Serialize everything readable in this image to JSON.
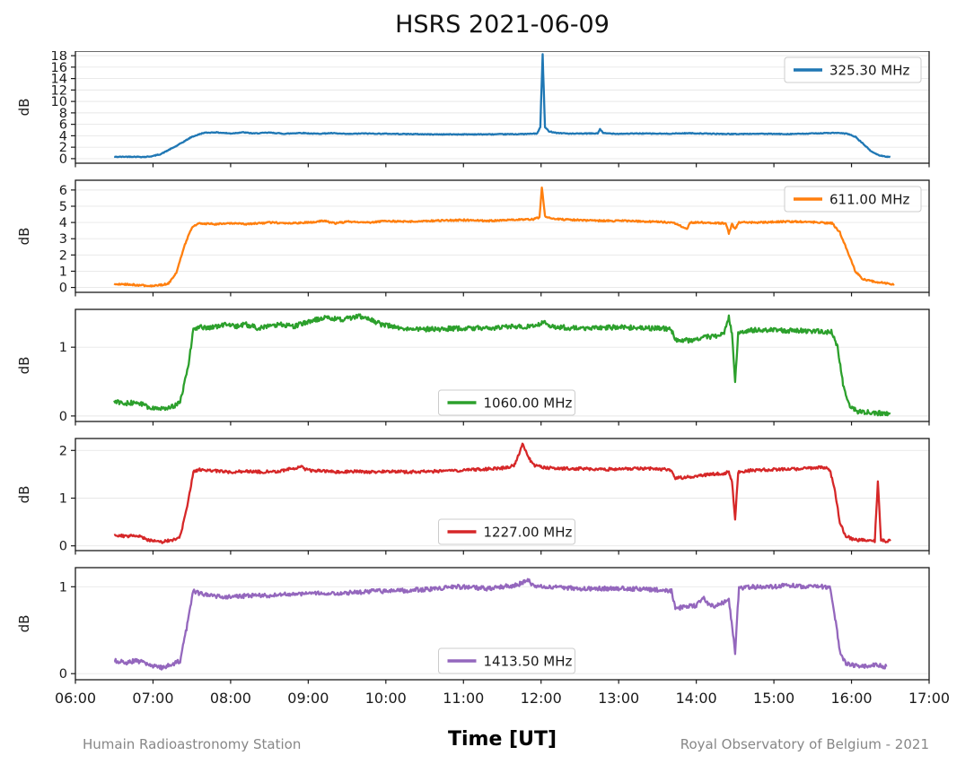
{
  "title": "HSRS 2021-06-09",
  "footer": {
    "left": "Humain Radioastronomy Station",
    "center_xlabel": "Time [UT]",
    "right": "Royal Observatory of Belgium - 2021"
  },
  "axis": {
    "x_range": [
      6,
      17
    ],
    "x_ticks": [
      {
        "v": 6,
        "label": "06:00"
      },
      {
        "v": 7,
        "label": "07:00"
      },
      {
        "v": 8,
        "label": "08:00"
      },
      {
        "v": 9,
        "label": "09:00"
      },
      {
        "v": 10,
        "label": "10:00"
      },
      {
        "v": 11,
        "label": "11:00"
      },
      {
        "v": 12,
        "label": "12:00"
      },
      {
        "v": 13,
        "label": "13:00"
      },
      {
        "v": 14,
        "label": "14:00"
      },
      {
        "v": 15,
        "label": "15:00"
      },
      {
        "v": 16,
        "label": "16:00"
      },
      {
        "v": 17,
        "label": "17:00"
      }
    ],
    "ylabel": "dB"
  },
  "chart_data": [
    {
      "type": "line",
      "name": "325.30 MHz",
      "color": "#1f77b4",
      "ylim": [
        -0.8,
        18.8
      ],
      "yticks": [
        0,
        2,
        4,
        6,
        8,
        10,
        12,
        14,
        16,
        18
      ],
      "legend_loc": "upper right",
      "noise": 0.07,
      "points": [
        [
          6.5,
          0.3
        ],
        [
          6.7,
          0.35
        ],
        [
          6.9,
          0.3
        ],
        [
          7.0,
          0.45
        ],
        [
          7.1,
          0.8
        ],
        [
          7.3,
          2.2
        ],
        [
          7.5,
          3.8
        ],
        [
          7.65,
          4.5
        ],
        [
          7.8,
          4.6
        ],
        [
          8.0,
          4.4
        ],
        [
          8.15,
          4.6
        ],
        [
          8.3,
          4.4
        ],
        [
          8.5,
          4.55
        ],
        [
          8.7,
          4.35
        ],
        [
          8.9,
          4.5
        ],
        [
          9.1,
          4.35
        ],
        [
          9.3,
          4.45
        ],
        [
          9.5,
          4.3
        ],
        [
          9.7,
          4.4
        ],
        [
          10.0,
          4.35
        ],
        [
          10.3,
          4.3
        ],
        [
          10.6,
          4.25
        ],
        [
          11.0,
          4.25
        ],
        [
          11.4,
          4.25
        ],
        [
          11.8,
          4.3
        ],
        [
          11.95,
          4.4
        ],
        [
          11.99,
          5.5
        ],
        [
          12.02,
          18.2
        ],
        [
          12.05,
          5.5
        ],
        [
          12.1,
          4.8
        ],
        [
          12.2,
          4.5
        ],
        [
          12.4,
          4.35
        ],
        [
          12.6,
          4.4
        ],
        [
          12.73,
          4.4
        ],
        [
          12.76,
          5.2
        ],
        [
          12.8,
          4.45
        ],
        [
          13.0,
          4.35
        ],
        [
          13.3,
          4.4
        ],
        [
          13.6,
          4.35
        ],
        [
          13.9,
          4.45
        ],
        [
          14.2,
          4.35
        ],
        [
          14.5,
          4.3
        ],
        [
          14.8,
          4.35
        ],
        [
          15.1,
          4.3
        ],
        [
          15.4,
          4.35
        ],
        [
          15.6,
          4.45
        ],
        [
          15.8,
          4.5
        ],
        [
          15.95,
          4.35
        ],
        [
          16.05,
          3.8
        ],
        [
          16.15,
          2.6
        ],
        [
          16.25,
          1.3
        ],
        [
          16.35,
          0.6
        ],
        [
          16.45,
          0.35
        ],
        [
          16.5,
          0.3
        ]
      ]
    },
    {
      "type": "line",
      "name": "611.00 MHz",
      "color": "#ff7f0e",
      "ylim": [
        -0.3,
        6.6
      ],
      "yticks": [
        0,
        1,
        2,
        3,
        4,
        5,
        6
      ],
      "legend_loc": "upper right",
      "noise": 0.05,
      "points": [
        [
          6.5,
          0.2
        ],
        [
          6.7,
          0.18
        ],
        [
          6.9,
          0.12
        ],
        [
          7.05,
          0.1
        ],
        [
          7.2,
          0.25
        ],
        [
          7.3,
          0.9
        ],
        [
          7.4,
          2.5
        ],
        [
          7.5,
          3.7
        ],
        [
          7.6,
          3.95
        ],
        [
          7.8,
          3.9
        ],
        [
          8.0,
          3.95
        ],
        [
          8.2,
          3.9
        ],
        [
          8.5,
          4.0
        ],
        [
          8.8,
          3.95
        ],
        [
          9.0,
          4.0
        ],
        [
          9.2,
          4.1
        ],
        [
          9.35,
          3.95
        ],
        [
          9.5,
          4.05
        ],
        [
          9.8,
          4.0
        ],
        [
          10.0,
          4.1
        ],
        [
          10.3,
          4.05
        ],
        [
          10.6,
          4.1
        ],
        [
          11.0,
          4.15
        ],
        [
          11.3,
          4.1
        ],
        [
          11.6,
          4.15
        ],
        [
          11.9,
          4.2
        ],
        [
          11.98,
          4.3
        ],
        [
          12.01,
          6.2
        ],
        [
          12.05,
          4.4
        ],
        [
          12.2,
          4.2
        ],
        [
          12.5,
          4.15
        ],
        [
          12.8,
          4.1
        ],
        [
          13.1,
          4.1
        ],
        [
          13.4,
          4.05
        ],
        [
          13.7,
          4.0
        ],
        [
          13.88,
          3.6
        ],
        [
          13.92,
          4.0
        ],
        [
          14.1,
          4.0
        ],
        [
          14.38,
          3.95
        ],
        [
          14.42,
          3.3
        ],
        [
          14.46,
          3.9
        ],
        [
          14.5,
          3.6
        ],
        [
          14.55,
          4.0
        ],
        [
          14.8,
          4.0
        ],
        [
          15.1,
          4.05
        ],
        [
          15.4,
          4.05
        ],
        [
          15.6,
          4.0
        ],
        [
          15.75,
          3.95
        ],
        [
          15.85,
          3.4
        ],
        [
          15.95,
          2.2
        ],
        [
          16.05,
          1.0
        ],
        [
          16.15,
          0.5
        ],
        [
          16.3,
          0.35
        ],
        [
          16.45,
          0.25
        ],
        [
          16.55,
          0.2
        ]
      ]
    },
    {
      "type": "line",
      "name": "1060.00 MHz",
      "color": "#2ca02c",
      "ylim": [
        -0.08,
        1.55
      ],
      "yticks": [
        0,
        1
      ],
      "legend_loc": "lower center",
      "noise": 0.035,
      "points": [
        [
          6.5,
          0.2
        ],
        [
          6.65,
          0.18
        ],
        [
          6.8,
          0.2
        ],
        [
          6.95,
          0.12
        ],
        [
          7.1,
          0.1
        ],
        [
          7.25,
          0.13
        ],
        [
          7.35,
          0.2
        ],
        [
          7.45,
          0.7
        ],
        [
          7.52,
          1.25
        ],
        [
          7.6,
          1.3
        ],
        [
          7.75,
          1.28
        ],
        [
          7.9,
          1.33
        ],
        [
          8.05,
          1.3
        ],
        [
          8.2,
          1.33
        ],
        [
          8.35,
          1.28
        ],
        [
          8.5,
          1.3
        ],
        [
          8.65,
          1.33
        ],
        [
          8.8,
          1.3
        ],
        [
          8.95,
          1.35
        ],
        [
          9.1,
          1.4
        ],
        [
          9.25,
          1.43
        ],
        [
          9.4,
          1.4
        ],
        [
          9.55,
          1.42
        ],
        [
          9.65,
          1.45
        ],
        [
          9.8,
          1.4
        ],
        [
          9.95,
          1.33
        ],
        [
          10.1,
          1.3
        ],
        [
          10.3,
          1.27
        ],
        [
          10.5,
          1.26
        ],
        [
          10.8,
          1.27
        ],
        [
          11.1,
          1.28
        ],
        [
          11.4,
          1.28
        ],
        [
          11.7,
          1.3
        ],
        [
          11.95,
          1.3
        ],
        [
          12.02,
          1.38
        ],
        [
          12.1,
          1.3
        ],
        [
          12.4,
          1.28
        ],
        [
          12.7,
          1.28
        ],
        [
          13.0,
          1.29
        ],
        [
          13.3,
          1.28
        ],
        [
          13.6,
          1.27
        ],
        [
          13.68,
          1.25
        ],
        [
          13.73,
          1.1
        ],
        [
          13.9,
          1.1
        ],
        [
          14.05,
          1.13
        ],
        [
          14.2,
          1.16
        ],
        [
          14.35,
          1.18
        ],
        [
          14.42,
          1.44
        ],
        [
          14.46,
          1.2
        ],
        [
          14.5,
          0.5
        ],
        [
          14.54,
          1.22
        ],
        [
          14.7,
          1.25
        ],
        [
          15.0,
          1.25
        ],
        [
          15.3,
          1.24
        ],
        [
          15.6,
          1.23
        ],
        [
          15.75,
          1.22
        ],
        [
          15.82,
          1.0
        ],
        [
          15.9,
          0.4
        ],
        [
          15.98,
          0.12
        ],
        [
          16.1,
          0.06
        ],
        [
          16.25,
          0.05
        ],
        [
          16.4,
          0.04
        ],
        [
          16.5,
          0.03
        ]
      ]
    },
    {
      "type": "line",
      "name": "1227.00 MHz",
      "color": "#d62728",
      "ylim": [
        -0.1,
        2.25
      ],
      "yticks": [
        0,
        1,
        2
      ],
      "legend_loc": "lower center",
      "noise": 0.03,
      "points": [
        [
          6.5,
          0.22
        ],
        [
          6.65,
          0.2
        ],
        [
          6.8,
          0.22
        ],
        [
          6.95,
          0.12
        ],
        [
          7.1,
          0.08
        ],
        [
          7.25,
          0.12
        ],
        [
          7.35,
          0.2
        ],
        [
          7.45,
          0.9
        ],
        [
          7.52,
          1.55
        ],
        [
          7.6,
          1.6
        ],
        [
          7.8,
          1.57
        ],
        [
          8.0,
          1.55
        ],
        [
          8.2,
          1.56
        ],
        [
          8.4,
          1.55
        ],
        [
          8.6,
          1.56
        ],
        [
          8.8,
          1.62
        ],
        [
          8.9,
          1.66
        ],
        [
          9.0,
          1.58
        ],
        [
          9.2,
          1.57
        ],
        [
          9.4,
          1.55
        ],
        [
          9.6,
          1.56
        ],
        [
          9.8,
          1.55
        ],
        [
          10.0,
          1.56
        ],
        [
          10.3,
          1.55
        ],
        [
          10.6,
          1.56
        ],
        [
          10.9,
          1.58
        ],
        [
          11.2,
          1.6
        ],
        [
          11.5,
          1.63
        ],
        [
          11.65,
          1.68
        ],
        [
          11.72,
          1.95
        ],
        [
          11.76,
          2.15
        ],
        [
          11.82,
          1.9
        ],
        [
          11.9,
          1.7
        ],
        [
          12.0,
          1.65
        ],
        [
          12.2,
          1.62
        ],
        [
          12.5,
          1.62
        ],
        [
          12.8,
          1.6
        ],
        [
          13.1,
          1.62
        ],
        [
          13.4,
          1.62
        ],
        [
          13.6,
          1.6
        ],
        [
          13.68,
          1.58
        ],
        [
          13.73,
          1.42
        ],
        [
          13.9,
          1.44
        ],
        [
          14.05,
          1.47
        ],
        [
          14.2,
          1.5
        ],
        [
          14.35,
          1.52
        ],
        [
          14.42,
          1.55
        ],
        [
          14.46,
          1.35
        ],
        [
          14.5,
          0.55
        ],
        [
          14.54,
          1.55
        ],
        [
          14.7,
          1.58
        ],
        [
          15.0,
          1.6
        ],
        [
          15.3,
          1.61
        ],
        [
          15.5,
          1.63
        ],
        [
          15.65,
          1.65
        ],
        [
          15.72,
          1.6
        ],
        [
          15.78,
          1.2
        ],
        [
          15.85,
          0.5
        ],
        [
          15.92,
          0.22
        ],
        [
          16.0,
          0.15
        ],
        [
          16.1,
          0.12
        ],
        [
          16.2,
          0.12
        ],
        [
          16.3,
          0.1
        ],
        [
          16.34,
          1.35
        ],
        [
          16.38,
          0.12
        ],
        [
          16.45,
          0.1
        ],
        [
          16.5,
          0.1
        ]
      ]
    },
    {
      "type": "line",
      "name": "1413.50 MHz",
      "color": "#9467bd",
      "ylim": [
        -0.07,
        1.22
      ],
      "yticks": [
        0,
        1
      ],
      "legend_loc": "lower center",
      "noise": 0.025,
      "points": [
        [
          6.5,
          0.15
        ],
        [
          6.65,
          0.13
        ],
        [
          6.8,
          0.15
        ],
        [
          6.95,
          0.1
        ],
        [
          7.1,
          0.07
        ],
        [
          7.25,
          0.1
        ],
        [
          7.35,
          0.15
        ],
        [
          7.45,
          0.6
        ],
        [
          7.52,
          0.95
        ],
        [
          7.6,
          0.92
        ],
        [
          7.75,
          0.9
        ],
        [
          7.9,
          0.88
        ],
        [
          8.1,
          0.89
        ],
        [
          8.3,
          0.9
        ],
        [
          8.5,
          0.9
        ],
        [
          8.7,
          0.91
        ],
        [
          8.9,
          0.92
        ],
        [
          9.1,
          0.92
        ],
        [
          9.3,
          0.93
        ],
        [
          9.5,
          0.93
        ],
        [
          9.7,
          0.94
        ],
        [
          9.9,
          0.95
        ],
        [
          10.1,
          0.95
        ],
        [
          10.3,
          0.96
        ],
        [
          10.5,
          0.97
        ],
        [
          10.7,
          0.98
        ],
        [
          10.9,
          1.0
        ],
        [
          11.1,
          0.99
        ],
        [
          11.3,
          0.98
        ],
        [
          11.5,
          1.0
        ],
        [
          11.7,
          1.02
        ],
        [
          11.82,
          1.08
        ],
        [
          11.9,
          1.02
        ],
        [
          12.0,
          1.0
        ],
        [
          12.2,
          0.99
        ],
        [
          12.5,
          0.98
        ],
        [
          12.8,
          0.98
        ],
        [
          13.1,
          0.98
        ],
        [
          13.4,
          0.97
        ],
        [
          13.6,
          0.96
        ],
        [
          13.68,
          0.95
        ],
        [
          13.73,
          0.75
        ],
        [
          13.85,
          0.77
        ],
        [
          14.0,
          0.78
        ],
        [
          14.08,
          0.88
        ],
        [
          14.15,
          0.8
        ],
        [
          14.25,
          0.78
        ],
        [
          14.35,
          0.82
        ],
        [
          14.42,
          0.85
        ],
        [
          14.5,
          0.25
        ],
        [
          14.55,
          0.98
        ],
        [
          14.7,
          1.0
        ],
        [
          15.0,
          1.0
        ],
        [
          15.2,
          1.02
        ],
        [
          15.4,
          1.0
        ],
        [
          15.6,
          1.0
        ],
        [
          15.72,
          1.0
        ],
        [
          15.78,
          0.7
        ],
        [
          15.85,
          0.25
        ],
        [
          15.92,
          0.12
        ],
        [
          16.0,
          0.1
        ],
        [
          16.15,
          0.09
        ],
        [
          16.3,
          0.1
        ],
        [
          16.45,
          0.08
        ]
      ]
    }
  ]
}
